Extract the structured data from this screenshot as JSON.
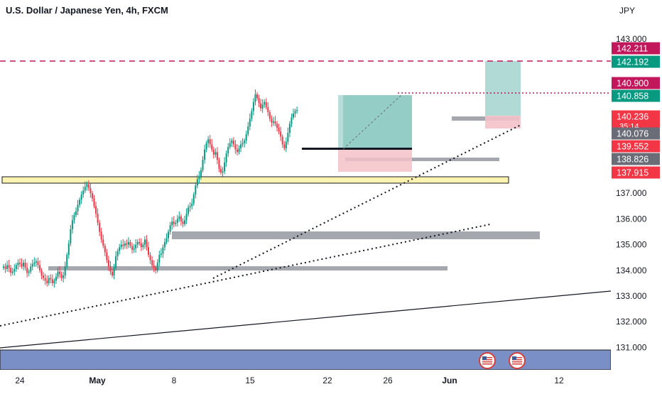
{
  "chart_header": {
    "title": "U.S. Dollar / Japanese Yen, 4h, FXCM",
    "currency": "JPY"
  },
  "colors": {
    "up": "#089981",
    "down": "#f23645",
    "support_zone": "#fff3b0",
    "gray_zone": "#9598a1",
    "target_zone": "#a8d5d1",
    "stop_zone": "#f3c2c8",
    "bottom_band": "#7b8fc7",
    "resistance_line": "#c2185b"
  },
  "chart_data": {
    "type": "candlestick",
    "instrument": "U.S. Dollar / Japanese Yen",
    "timeframe": "4h",
    "source": "FXCM",
    "currency": "JPY",
    "ylim": [
      130.2,
      143.7
    ],
    "y_ticks": [
      "143.000",
      "137.000",
      "136.000",
      "135.000",
      "134.000",
      "133.000",
      "132.000",
      "131.000"
    ],
    "y_tick_values": [
      143,
      137,
      136,
      135,
      134,
      133,
      132,
      131
    ],
    "x_ticks": [
      "24",
      "May",
      "8",
      "15",
      "22",
      "26",
      "Jun",
      "12"
    ],
    "x_tick_index": [
      10,
      50,
      90,
      132,
      170,
      210,
      246,
      300
    ],
    "grid": false,
    "price_tags": [
      {
        "label": "142.211",
        "color": "#c2185b",
        "value": 142.211
      },
      {
        "label": "142.192",
        "color": "#089981",
        "value": 142.192
      },
      {
        "label": "140.900",
        "color": "#c2185b",
        "value": 140.9
      },
      {
        "label": "140.858",
        "color": "#089981",
        "value": 140.858
      },
      {
        "label": "140.236",
        "sub": "35:14",
        "color": "#f23645",
        "value": 140.236
      },
      {
        "label": "140.076",
        "color": "#6a6d78",
        "value": 140.076
      },
      {
        "label": "139.552",
        "color": "#f23645",
        "value": 139.552
      },
      {
        "label": "138.826",
        "color": "#6a6d78",
        "value": 138.826
      },
      {
        "label": "137.915",
        "color": "#f23645",
        "value": 137.915
      }
    ],
    "candle_closes": [
      134.15,
      134.05,
      134.2,
      134.1,
      133.9,
      133.95,
      134.05,
      134.2,
      134.3,
      134.25,
      134.15,
      134.3,
      134.1,
      133.9,
      133.95,
      134.15,
      134.25,
      134.3,
      134.35,
      134.2,
      134.0,
      133.8,
      133.7,
      133.6,
      133.5,
      133.7,
      133.65,
      133.5,
      133.6,
      133.75,
      133.95,
      133.85,
      133.7,
      133.8,
      134.15,
      134.6,
      135.05,
      135.6,
      135.95,
      136.15,
      136.3,
      136.55,
      136.75,
      136.95,
      137.1,
      137.25,
      137.35,
      137.2,
      137.0,
      136.8,
      136.5,
      136.2,
      135.85,
      135.5,
      135.2,
      134.95,
      134.7,
      134.4,
      134.15,
      133.95,
      133.8,
      134.1,
      134.55,
      134.75,
      134.9,
      135.0,
      134.95,
      135.05,
      135.0,
      135.1,
      134.95,
      134.8,
      134.85,
      135.0,
      135.1,
      135.05,
      134.9,
      135.0,
      135.2,
      134.9,
      134.6,
      134.4,
      134.2,
      134.1,
      134.0,
      134.3,
      134.6,
      134.65,
      134.9,
      135.1,
      135.25,
      135.5,
      135.75,
      135.9,
      135.8,
      135.85,
      136.0,
      136.1,
      135.9,
      135.8,
      135.95,
      136.2,
      136.45,
      136.5,
      136.6,
      136.95,
      137.3,
      137.55,
      137.65,
      137.9,
      138.3,
      138.7,
      138.95,
      139.1,
      138.9,
      138.7,
      138.5,
      138.6,
      138.3,
      137.95,
      137.8,
      137.85,
      138.2,
      138.55,
      138.8,
      138.95,
      139.05,
      138.9,
      138.7,
      138.6,
      138.75,
      138.9,
      138.95,
      139.05,
      139.3,
      139.6,
      139.9,
      140.2,
      140.55,
      140.85,
      140.7,
      140.5,
      140.3,
      140.45,
      140.55,
      140.35,
      140.15,
      139.9,
      139.75,
      139.8,
      139.7,
      139.55,
      139.4,
      139.2,
      138.9,
      138.75,
      139.0,
      139.35,
      139.7,
      139.95,
      140.1,
      140.2,
      140.24
    ],
    "annotations": [
      {
        "kind": "support_zone",
        "from": 137.5,
        "to": 137.7
      },
      {
        "kind": "gray_zone",
        "from": 135.4,
        "to": 135.65
      },
      {
        "kind": "gray_zone",
        "from": 134.05,
        "to": 134.2
      },
      {
        "kind": "gray_zone",
        "from": 138.78,
        "to": 138.88
      },
      {
        "kind": "gray_zone",
        "from": 140.05,
        "to": 140.2
      },
      {
        "kind": "long_position",
        "entry": 138.95,
        "target": 140.9,
        "stop": 138.1
      },
      {
        "kind": "long_position",
        "entry": 140.25,
        "target": 142.2,
        "stop": 139.85
      },
      {
        "kind": "dashed_resistance",
        "value": 142.211
      },
      {
        "kind": "dotted_level",
        "value": 140.9
      }
    ]
  }
}
